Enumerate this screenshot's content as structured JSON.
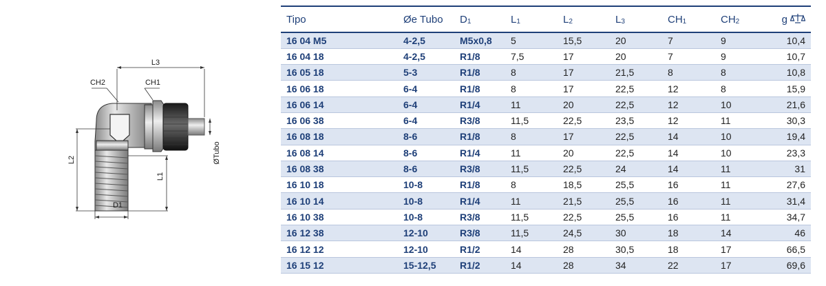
{
  "drawing": {
    "labels": {
      "l3": "L3",
      "ch2": "CH2",
      "ch1": "CH1",
      "l2": "L2",
      "l1": "L1",
      "d1": "D1",
      "tubo": "ØTubo"
    }
  },
  "table": {
    "headers": {
      "tipo": "Tipo",
      "tubo": "Øe Tubo",
      "d1_main": "D",
      "d1_sub": "1",
      "l1_main": "L",
      "l1_sub": "1",
      "l2_main": "L",
      "l2_sub": "2",
      "l3_main": "L",
      "l3_sub": "3",
      "ch1_main": "CH",
      "ch1_sub": "1",
      "ch2_main": "CH",
      "ch2_sub": "2",
      "weight": "g",
      "weight_icon": "scale-icon"
    },
    "rows": [
      {
        "tipo": "16 04 M5",
        "tubo": "4-2,5",
        "d1": "M5x0,8",
        "l1": "5",
        "l2": "15,5",
        "l3": "20",
        "ch1": "7",
        "ch2": "9",
        "g": "10,4"
      },
      {
        "tipo": "16 04 18",
        "tubo": "4-2,5",
        "d1": "R1/8",
        "l1": "7,5",
        "l2": "17",
        "l3": "20",
        "ch1": "7",
        "ch2": "9",
        "g": "10,7"
      },
      {
        "tipo": "16 05 18",
        "tubo": "5-3",
        "d1": "R1/8",
        "l1": "8",
        "l2": "17",
        "l3": "21,5",
        "ch1": "8",
        "ch2": "8",
        "g": "10,8"
      },
      {
        "tipo": "16 06 18",
        "tubo": "6-4",
        "d1": "R1/8",
        "l1": "8",
        "l2": "17",
        "l3": "22,5",
        "ch1": "12",
        "ch2": "8",
        "g": "15,9"
      },
      {
        "tipo": "16 06 14",
        "tubo": "6-4",
        "d1": "R1/4",
        "l1": "11",
        "l2": "20",
        "l3": "22,5",
        "ch1": "12",
        "ch2": "10",
        "g": "21,6"
      },
      {
        "tipo": "16 06 38",
        "tubo": "6-4",
        "d1": "R3/8",
        "l1": "11,5",
        "l2": "22,5",
        "l3": "23,5",
        "ch1": "12",
        "ch2": "11",
        "g": "30,3"
      },
      {
        "tipo": "16 08 18",
        "tubo": "8-6",
        "d1": "R1/8",
        "l1": "8",
        "l2": "17",
        "l3": "22,5",
        "ch1": "14",
        "ch2": "10",
        "g": "19,4"
      },
      {
        "tipo": "16 08 14",
        "tubo": "8-6",
        "d1": "R1/4",
        "l1": "11",
        "l2": "20",
        "l3": "22,5",
        "ch1": "14",
        "ch2": "10",
        "g": "23,3"
      },
      {
        "tipo": "16 08 38",
        "tubo": "8-6",
        "d1": "R3/8",
        "l1": "11,5",
        "l2": "22,5",
        "l3": "24",
        "ch1": "14",
        "ch2": "11",
        "g": "31"
      },
      {
        "tipo": "16 10 18",
        "tubo": "10-8",
        "d1": "R1/8",
        "l1": "8",
        "l2": "18,5",
        "l3": "25,5",
        "ch1": "16",
        "ch2": "11",
        "g": "27,6"
      },
      {
        "tipo": "16 10 14",
        "tubo": "10-8",
        "d1": "R1/4",
        "l1": "11",
        "l2": "21,5",
        "l3": "25,5",
        "ch1": "16",
        "ch2": "11",
        "g": "31,4"
      },
      {
        "tipo": "16 10 38",
        "tubo": "10-8",
        "d1": "R3/8",
        "l1": "11,5",
        "l2": "22,5",
        "l3": "25,5",
        "ch1": "16",
        "ch2": "11",
        "g": "34,7"
      },
      {
        "tipo": "16 12 38",
        "tubo": "12-10",
        "d1": "R3/8",
        "l1": "11,5",
        "l2": "24,5",
        "l3": "30",
        "ch1": "18",
        "ch2": "14",
        "g": "46"
      },
      {
        "tipo": "16 12 12",
        "tubo": "12-10",
        "d1": "R1/2",
        "l1": "14",
        "l2": "28",
        "l3": "30,5",
        "ch1": "18",
        "ch2": "17",
        "g": "66,5"
      },
      {
        "tipo": "16 15 12",
        "tubo": "15-12,5",
        "d1": "R1/2",
        "l1": "14",
        "l2": "28",
        "l3": "34",
        "ch1": "22",
        "ch2": "17",
        "g": "69,6"
      }
    ]
  }
}
